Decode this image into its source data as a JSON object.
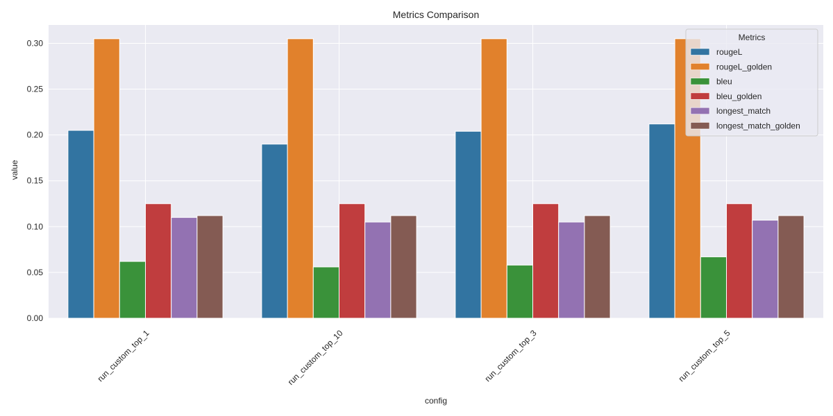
{
  "chart_data": {
    "type": "bar",
    "title": "Metrics Comparison",
    "xlabel": "config",
    "ylabel": "value",
    "categories": [
      "run_custom_top_1",
      "run_custom_top_10",
      "run_custom_top_3",
      "run_custom_top_5"
    ],
    "series": [
      {
        "name": "rougeL",
        "color": "#3274a1",
        "values": [
          0.205,
          0.19,
          0.204,
          0.212
        ]
      },
      {
        "name": "rougeL_golden",
        "color": "#e1812c",
        "values": [
          0.305,
          0.305,
          0.305,
          0.305
        ]
      },
      {
        "name": "bleu",
        "color": "#3a923a",
        "values": [
          0.062,
          0.056,
          0.058,
          0.067
        ]
      },
      {
        "name": "bleu_golden",
        "color": "#c03d3e",
        "values": [
          0.125,
          0.125,
          0.125,
          0.125
        ]
      },
      {
        "name": "longest_match",
        "color": "#9372b2",
        "values": [
          0.11,
          0.105,
          0.105,
          0.107
        ]
      },
      {
        "name": "longest_match_golden",
        "color": "#845b53",
        "values": [
          0.112,
          0.112,
          0.112,
          0.112
        ]
      }
    ],
    "ylim": [
      0,
      0.32
    ],
    "yticks": [
      0.0,
      0.05,
      0.1,
      0.15,
      0.2,
      0.25,
      0.3
    ],
    "ytick_labels": [
      "0.00",
      "0.05",
      "0.10",
      "0.15",
      "0.20",
      "0.25",
      "0.30"
    ],
    "grid": true,
    "legend": {
      "title": "Metrics",
      "position": "top-right"
    },
    "style": {
      "plot_background": "#eaeaf2",
      "grid_color": "#ffffff",
      "bar_edge_color": "#ffffff"
    }
  }
}
